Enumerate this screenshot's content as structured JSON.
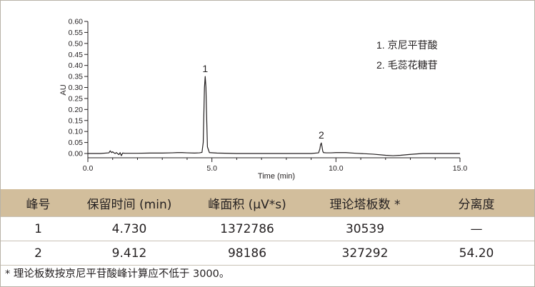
{
  "chart_data": {
    "type": "line",
    "title": "",
    "xlabel": "Time (min)",
    "ylabel": "AU",
    "xlim": [
      0,
      15
    ],
    "ylim": [
      -0.02,
      0.6
    ],
    "xticks": [
      "0.0",
      "5.0",
      "10.0",
      "15.0"
    ],
    "yticks": [
      "0.00",
      "0.05",
      "0.10",
      "0.15",
      "0.20",
      "0.25",
      "0.30",
      "0.35",
      "0.40",
      "0.45",
      "0.50",
      "0.55",
      "0.60"
    ],
    "grid": false,
    "legend": [
      "1. 京尼平苷酸",
      "2. 毛蕊花糖苷"
    ],
    "legend_position": "top-right",
    "line_color": "#231f20",
    "peak_labels": [
      {
        "label": "1",
        "x": 4.73,
        "y": 0.35
      },
      {
        "label": "2",
        "x": 9.412,
        "y": 0.048
      }
    ],
    "series": [
      {
        "x": [
          0.0,
          0.5,
          0.85,
          0.9,
          0.93,
          0.96,
          1.0,
          1.05,
          1.1,
          1.15,
          1.25,
          1.3,
          1.35,
          1.4,
          1.5,
          2.0,
          2.5,
          3.0,
          3.4,
          3.6,
          3.8,
          4.0,
          4.3,
          4.5,
          4.6,
          4.65,
          4.68,
          4.7,
          4.73,
          4.76,
          4.78,
          4.82,
          4.9,
          5.2,
          6.0,
          7.0,
          8.0,
          8.5,
          9.0,
          9.3,
          9.35,
          9.38,
          9.41,
          9.44,
          9.47,
          9.5,
          9.6,
          9.8,
          10.0,
          10.4,
          10.8,
          11.5,
          12.0,
          12.3,
          12.6,
          13.0,
          13.5,
          14.0,
          15.0
        ],
        "y": [
          0.0,
          0.0,
          0.003,
          0.012,
          0.008,
          0.004,
          0.008,
          0.003,
          0.0,
          0.004,
          -0.005,
          0.004,
          -0.01,
          0.002,
          0.001,
          0.001,
          0.002,
          0.002,
          0.003,
          0.004,
          0.004,
          0.003,
          0.002,
          0.003,
          0.005,
          0.05,
          0.2,
          0.3,
          0.35,
          0.3,
          0.2,
          0.03,
          0.004,
          0.002,
          0.0,
          0.0,
          0.0,
          0.0,
          0.0,
          0.003,
          0.02,
          0.04,
          0.048,
          0.03,
          0.01,
          0.004,
          0.003,
          0.003,
          0.004,
          0.004,
          0.001,
          -0.003,
          -0.008,
          -0.01,
          -0.008,
          -0.004,
          0.0,
          0.0,
          0.0
        ]
      }
    ]
  },
  "table": {
    "headers": [
      "峰号",
      "保留时间 (min)",
      "峰面积 (μV*s)",
      "理论塔板数 *",
      "分离度"
    ],
    "rows": [
      [
        "1",
        "4.730",
        "1372786",
        "30539",
        "—"
      ],
      [
        "2",
        "9.412",
        "98186",
        "327292",
        "54.20"
      ]
    ]
  },
  "footnote": "* 理论板数按京尼平苷酸峰计算应不低于 3000。"
}
